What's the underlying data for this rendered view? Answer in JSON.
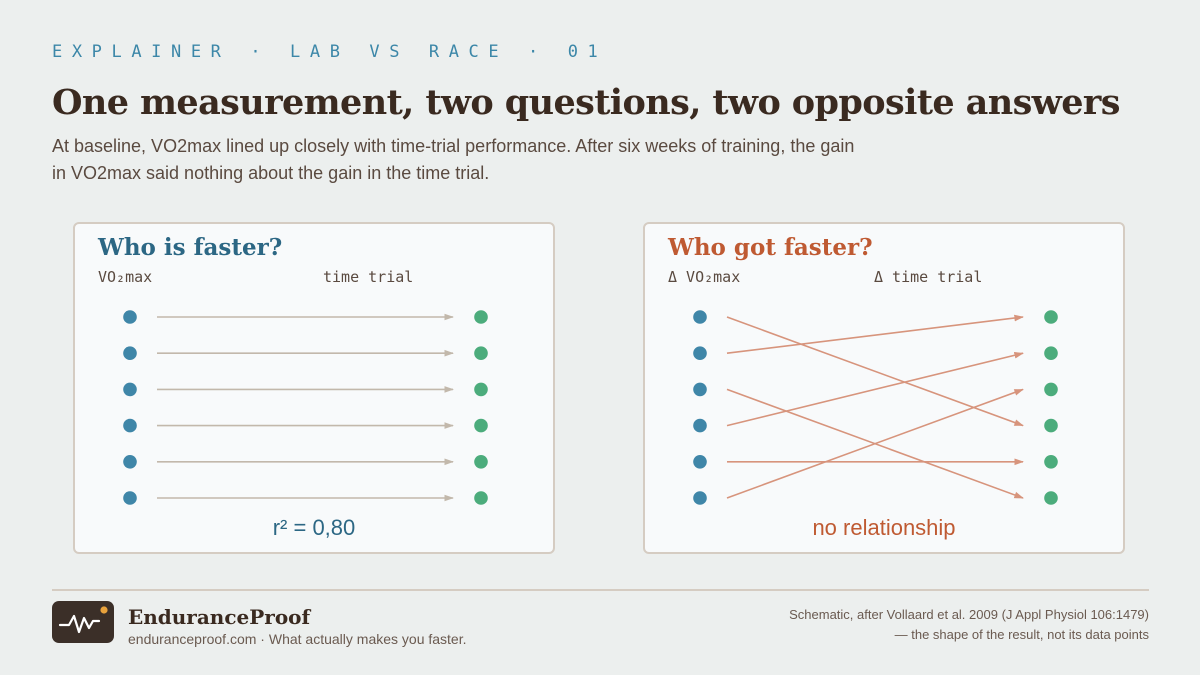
{
  "header": {
    "kicker": "EXPLAINER · LAB VS RACE · 01",
    "title": "One measurement, two questions, two opposite answers",
    "subtitle": "At baseline, VO2max lined up closely with time-trial performance. After six weeks of training, the gain in VO2max said nothing about the gain in the time trial."
  },
  "colors": {
    "left_dot": "#3f86a8",
    "right_dot": "#4cac7c",
    "neutral_arrow": "#c2b8ab",
    "accent_arrow": "#d7947c",
    "title_left": "#2c6784",
    "title_right": "#bf5a32"
  },
  "panels": {
    "left": {
      "title": "Who is faster?",
      "left_label": "VO₂max",
      "right_label": "time trial",
      "stat": "r² = 0,80",
      "links": [
        [
          0,
          0
        ],
        [
          1,
          1
        ],
        [
          2,
          2
        ],
        [
          3,
          3
        ],
        [
          4,
          4
        ],
        [
          5,
          5
        ]
      ]
    },
    "right": {
      "title": "Who got faster?",
      "left_label": "Δ VO₂max",
      "right_label": "Δ time trial",
      "stat": "no relationship",
      "links": [
        [
          0,
          3
        ],
        [
          1,
          0
        ],
        [
          2,
          5
        ],
        [
          3,
          1
        ],
        [
          4,
          4
        ],
        [
          5,
          2
        ]
      ]
    }
  },
  "footer": {
    "logo_icon": "heartbeat-icon",
    "brand": "EnduranceProof",
    "tagline": "enduranceproof.com · What actually makes you faster.",
    "source": "Schematic, after Vollaard et al. 2009 (J Appl Physiol 106:1479) — the shape of the result, not its data points"
  }
}
